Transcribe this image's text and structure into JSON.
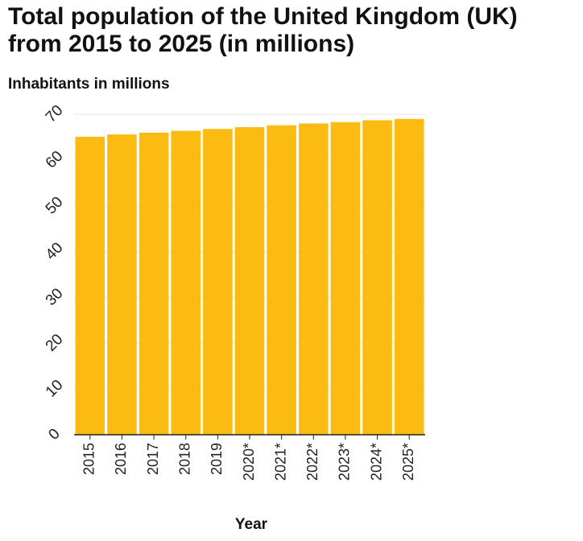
{
  "chart_data": {
    "type": "bar",
    "title": "Total population of the United Kingdom (UK) from 2015 to 2025 (in millions)",
    "xlabel": "Year",
    "ylabel": "Inhabitants in millions",
    "categories": [
      "2015",
      "2016",
      "2017",
      "2018",
      "2019",
      "2020*",
      "2021*",
      "2022*",
      "2023*",
      "2024*",
      "2025*"
    ],
    "values": [
      65.1,
      65.6,
      66.0,
      66.4,
      66.8,
      67.2,
      67.6,
      68.0,
      68.3,
      68.7,
      69.0
    ],
    "ylim": [
      0,
      70
    ],
    "yticks": [
      0,
      10,
      20,
      30,
      40,
      50,
      60,
      70
    ],
    "grid": true,
    "bar_color": "#fbbb13",
    "grid_color": "#e6e6e6"
  }
}
